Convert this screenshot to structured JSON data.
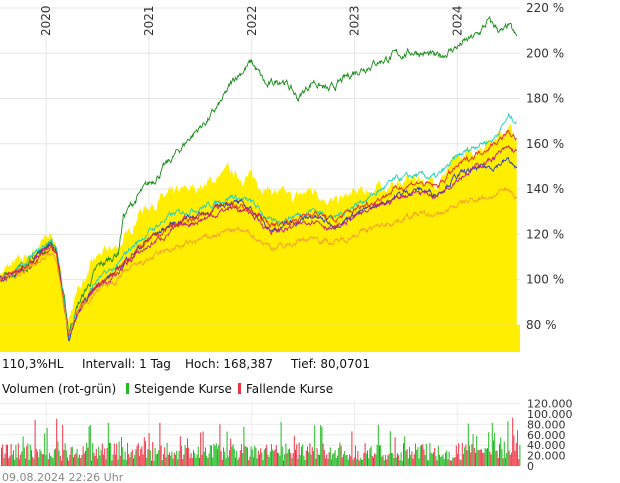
{
  "chart_data": [
    {
      "type": "area",
      "ylim": [
        68,
        220
      ],
      "yticks": [
        {
          "value": 80,
          "label": "80 %"
        },
        {
          "value": 100,
          "label": "100 %"
        },
        {
          "value": 120,
          "label": "120 %"
        },
        {
          "value": 140,
          "label": "140 %"
        },
        {
          "value": 160,
          "label": "160 %"
        },
        {
          "value": 180,
          "label": "180 %"
        },
        {
          "value": 200,
          "label": "200 %"
        },
        {
          "value": 220,
          "label": "220 %"
        }
      ],
      "xlim": [
        2019.55,
        2024.61
      ],
      "xticks": [
        {
          "value": 2020.0,
          "label": "2020"
        },
        {
          "value": 2021.0,
          "label": "2021"
        },
        {
          "value": 2022.0,
          "label": "2022"
        },
        {
          "value": 2023.0,
          "label": "2023"
        },
        {
          "value": 2024.0,
          "label": "2024"
        }
      ],
      "grid": true,
      "high_low_band": {
        "color": "#ffee00",
        "high": [
          [
            2019.55,
            103
          ],
          [
            2019.8,
            110
          ],
          [
            2020.05,
            120
          ],
          [
            2020.1,
            116
          ],
          [
            2020.2,
            80
          ],
          [
            2020.3,
            95
          ],
          [
            2020.5,
            110
          ],
          [
            2020.7,
            115
          ],
          [
            2020.8,
            120
          ],
          [
            2020.9,
            130
          ],
          [
            2021.0,
            133
          ],
          [
            2021.2,
            137
          ],
          [
            2021.4,
            140
          ],
          [
            2021.6,
            143
          ],
          [
            2021.75,
            148
          ],
          [
            2021.85,
            146
          ],
          [
            2022.0,
            145
          ],
          [
            2022.2,
            139
          ],
          [
            2022.4,
            136
          ],
          [
            2022.6,
            140
          ],
          [
            2022.8,
            134
          ],
          [
            2023.0,
            138
          ],
          [
            2023.2,
            140
          ],
          [
            2023.4,
            142
          ],
          [
            2023.6,
            145
          ],
          [
            2023.8,
            143
          ],
          [
            2024.0,
            153
          ],
          [
            2024.2,
            158
          ],
          [
            2024.4,
            165
          ],
          [
            2024.5,
            168
          ],
          [
            2024.58,
            161
          ]
        ],
        "low": [
          [
            2019.55,
            80
          ],
          [
            2024.61,
            80
          ]
        ]
      },
      "series": [
        {
          "color": "#1a8c1a",
          "values": [
            [
              2019.55,
              100
            ],
            [
              2019.8,
              106
            ],
            [
              2020.05,
              117
            ],
            [
              2020.1,
              114
            ],
            [
              2020.22,
              77
            ],
            [
              2020.3,
              88
            ],
            [
              2020.5,
              105
            ],
            [
              2020.7,
              112
            ],
            [
              2020.75,
              128
            ],
            [
              2020.9,
              137
            ],
            [
              2021.0,
              142
            ],
            [
              2021.2,
              152
            ],
            [
              2021.4,
              163
            ],
            [
              2021.6,
              172
            ],
            [
              2021.7,
              178
            ],
            [
              2021.85,
              190
            ],
            [
              2022.0,
              196
            ],
            [
              2022.15,
              185
            ],
            [
              2022.3,
              189
            ],
            [
              2022.45,
              180
            ],
            [
              2022.6,
              188
            ],
            [
              2022.75,
              183
            ],
            [
              2023.0,
              192
            ],
            [
              2023.2,
              196
            ],
            [
              2023.4,
              199
            ],
            [
              2023.6,
              201
            ],
            [
              2023.8,
              198
            ],
            [
              2024.0,
              203
            ],
            [
              2024.2,
              208
            ],
            [
              2024.3,
              214
            ],
            [
              2024.45,
              209
            ],
            [
              2024.5,
              212
            ],
            [
              2024.58,
              206
            ]
          ]
        },
        {
          "color": "#22d0c0",
          "values": [
            [
              2019.55,
              100
            ],
            [
              2019.8,
              107
            ],
            [
              2020.05,
              118
            ],
            [
              2020.1,
              113
            ],
            [
              2020.22,
              75
            ],
            [
              2020.3,
              86
            ],
            [
              2020.5,
              100
            ],
            [
              2020.7,
              106
            ],
            [
              2020.8,
              113
            ],
            [
              2021.0,
              121
            ],
            [
              2021.2,
              128
            ],
            [
              2021.4,
              131
            ],
            [
              2021.6,
              133
            ],
            [
              2021.8,
              137
            ],
            [
              2022.0,
              134
            ],
            [
              2022.2,
              125
            ],
            [
              2022.4,
              128
            ],
            [
              2022.6,
              131
            ],
            [
              2022.8,
              127
            ],
            [
              2023.0,
              133
            ],
            [
              2023.2,
              138
            ],
            [
              2023.4,
              144
            ],
            [
              2023.6,
              146
            ],
            [
              2023.8,
              145
            ],
            [
              2024.0,
              154
            ],
            [
              2024.2,
              160
            ],
            [
              2024.35,
              162
            ],
            [
              2024.5,
              172
            ],
            [
              2024.58,
              170
            ]
          ]
        },
        {
          "color": "#3040c0",
          "values": [
            [
              2019.55,
              100
            ],
            [
              2019.8,
              106
            ],
            [
              2020.05,
              116
            ],
            [
              2020.1,
              112
            ],
            [
              2020.22,
              73
            ],
            [
              2020.3,
              84
            ],
            [
              2020.5,
              98
            ],
            [
              2020.7,
              104
            ],
            [
              2020.8,
              110
            ],
            [
              2021.0,
              118
            ],
            [
              2021.2,
              124
            ],
            [
              2021.4,
              128
            ],
            [
              2021.6,
              130
            ],
            [
              2021.8,
              135
            ],
            [
              2022.0,
              131
            ],
            [
              2022.2,
              122
            ],
            [
              2022.4,
              125
            ],
            [
              2022.6,
              128
            ],
            [
              2022.8,
              124
            ],
            [
              2023.0,
              129
            ],
            [
              2023.2,
              132
            ],
            [
              2023.4,
              137
            ],
            [
              2023.6,
              140
            ],
            [
              2023.8,
              138
            ],
            [
              2024.0,
              146
            ],
            [
              2024.2,
              149
            ],
            [
              2024.35,
              150
            ],
            [
              2024.5,
              153
            ],
            [
              2024.58,
              148
            ]
          ]
        },
        {
          "color": "#c02080",
          "values": [
            [
              2019.55,
              100
            ],
            [
              2019.8,
              105
            ],
            [
              2020.05,
              115
            ],
            [
              2020.1,
              111
            ],
            [
              2020.22,
              74
            ],
            [
              2020.3,
              85
            ],
            [
              2020.5,
              97
            ],
            [
              2020.7,
              103
            ],
            [
              2020.8,
              108
            ],
            [
              2021.0,
              115
            ],
            [
              2021.2,
              121
            ],
            [
              2021.4,
              125
            ],
            [
              2021.6,
              128
            ],
            [
              2021.8,
              132
            ],
            [
              2022.0,
              129
            ],
            [
              2022.2,
              121
            ],
            [
              2022.4,
              123
            ],
            [
              2022.6,
              127
            ],
            [
              2022.8,
              122
            ],
            [
              2023.0,
              128
            ],
            [
              2023.2,
              131
            ],
            [
              2023.4,
              136
            ],
            [
              2023.6,
              139
            ],
            [
              2023.8,
              137
            ],
            [
              2024.0,
              145
            ],
            [
              2024.2,
              150
            ],
            [
              2024.35,
              154
            ],
            [
              2024.5,
              158
            ],
            [
              2024.58,
              156
            ]
          ]
        },
        {
          "color": "#e03020",
          "values": [
            [
              2019.55,
              100
            ],
            [
              2019.8,
              105
            ],
            [
              2020.05,
              114
            ],
            [
              2020.1,
              110
            ],
            [
              2020.22,
              75
            ],
            [
              2020.3,
              86
            ],
            [
              2020.5,
              98
            ],
            [
              2020.7,
              104
            ],
            [
              2020.8,
              110
            ],
            [
              2021.0,
              117
            ],
            [
              2021.2,
              123
            ],
            [
              2021.4,
              127
            ],
            [
              2021.6,
              130
            ],
            [
              2021.8,
              134
            ],
            [
              2022.0,
              130
            ],
            [
              2022.2,
              124
            ],
            [
              2022.4,
              126
            ],
            [
              2022.6,
              130
            ],
            [
              2022.8,
              126
            ],
            [
              2023.0,
              131
            ],
            [
              2023.2,
              135
            ],
            [
              2023.4,
              140
            ],
            [
              2023.6,
              143
            ],
            [
              2023.8,
              141
            ],
            [
              2024.0,
              150
            ],
            [
              2024.2,
              156
            ],
            [
              2024.35,
              160
            ],
            [
              2024.5,
              165
            ],
            [
              2024.58,
              162
            ]
          ]
        },
        {
          "color": "#f0a030",
          "values": [
            [
              2019.55,
              100
            ],
            [
              2019.8,
              104
            ],
            [
              2020.05,
              112
            ],
            [
              2020.1,
              108
            ],
            [
              2020.22,
              76
            ],
            [
              2020.3,
              85
            ],
            [
              2020.5,
              95
            ],
            [
              2020.7,
              100
            ],
            [
              2020.8,
              104
            ],
            [
              2021.0,
              109
            ],
            [
              2021.2,
              113
            ],
            [
              2021.4,
              116
            ],
            [
              2021.6,
              119
            ],
            [
              2021.8,
              122
            ],
            [
              2022.0,
              120
            ],
            [
              2022.2,
              114
            ],
            [
              2022.4,
              116
            ],
            [
              2022.6,
              119
            ],
            [
              2022.8,
              116
            ],
            [
              2023.0,
              120
            ],
            [
              2023.2,
              123
            ],
            [
              2023.4,
              126
            ],
            [
              2023.6,
              129
            ],
            [
              2023.8,
              128
            ],
            [
              2024.0,
              133
            ],
            [
              2024.2,
              136
            ],
            [
              2024.35,
              137
            ],
            [
              2024.5,
              140
            ],
            [
              2024.58,
              136
            ]
          ]
        }
      ]
    },
    {
      "type": "bar",
      "title": "Volumen (rot-grün)",
      "ylim": [
        0,
        125000
      ],
      "yticks": [
        {
          "value": 0,
          "label": "0"
        },
        {
          "value": 20000,
          "label": "20.000"
        },
        {
          "value": 40000,
          "label": "40.000"
        },
        {
          "value": 60000,
          "label": "60.000"
        },
        {
          "value": 80000,
          "label": "80.000"
        },
        {
          "value": 100000,
          "label": "100.000"
        },
        {
          "value": 120000,
          "label": "120.000"
        }
      ],
      "legend": [
        {
          "label": "Steigende Kurse",
          "color": "#22bb22"
        },
        {
          "label": "Fallende Kurse",
          "color": "#ee3344"
        }
      ],
      "colors": {
        "up": "#22bb22",
        "down": "#ee3344"
      },
      "typical_range": [
        10000,
        45000
      ]
    }
  ],
  "info_bar": {
    "change": "110,3%HL",
    "interval": "Intervall: 1 Tag",
    "high": "Hoch: 168,387",
    "low": "Tief: 80,0701"
  },
  "timestamp": "09.08.2024 22:26 Uhr"
}
